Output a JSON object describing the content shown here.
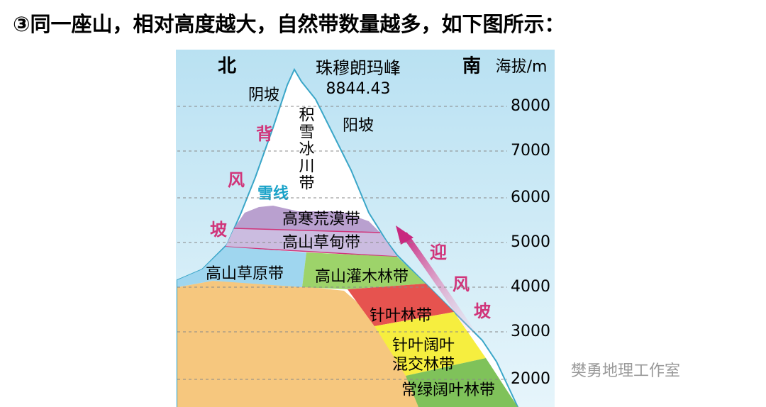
{
  "title": "③同一座山，相对高度越大，自然带数量越多，如下图所示：",
  "diagram": {
    "north": "北",
    "south": "南",
    "axis_label": "海拔/m",
    "peak_name": "珠穆朗玛峰",
    "peak_height": "8844.43",
    "shady_slope": "阴坡",
    "sunny_slope": "阳坡",
    "snowline": "雪线",
    "leeward": [
      "背",
      "风",
      "坡"
    ],
    "windward": [
      "迎",
      "风",
      "坡"
    ],
    "zones": {
      "snow": "积雪冰川带",
      "alpine_desert": "高寒荒漠带",
      "alpine_meadow": "高山草甸带",
      "alpine_steppe": "高山草原带",
      "alpine_shrub": "高山灌木林带",
      "coniferous": "针叶林带",
      "mixed": [
        "针叶阔叶",
        "混交林带"
      ],
      "evergreen": "常绿阔叶林带"
    },
    "altitude_ticks": [
      "8000",
      "7000",
      "6000",
      "5000",
      "4000",
      "3000",
      "2000"
    ]
  },
  "watermark": "樊勇地理工作室"
}
